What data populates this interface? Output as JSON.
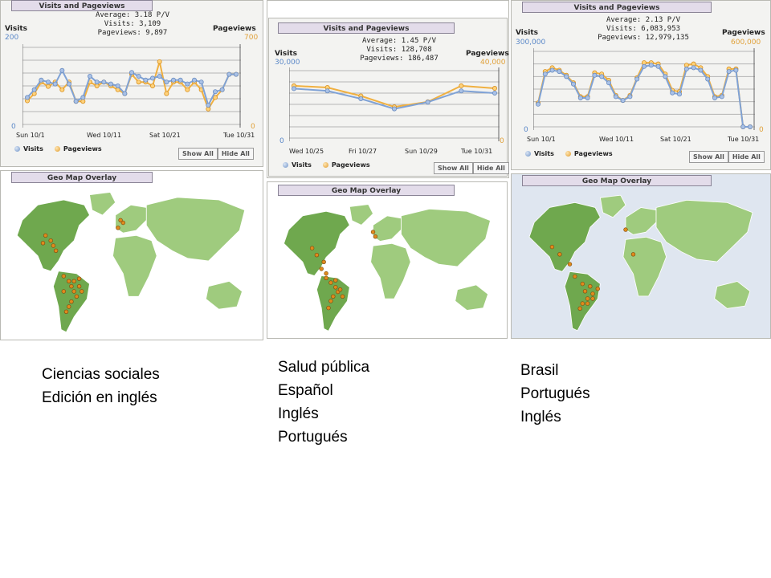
{
  "panels": [
    {
      "tab_label": "Visits and Pageviews",
      "stats": {
        "average": "Average: 3.18 P/V",
        "visits": "Visits: 3,109",
        "pageviews": "Pageviews: 9,897"
      },
      "y_left_title": "Visits",
      "y_right_title": "Pageviews",
      "y_left_max": "200",
      "y_right_max": "700",
      "y_left_min": "0",
      "y_right_min": "0",
      "x_labels": [
        "Sun 10/1",
        "Wed 10/11",
        "Sat 10/21",
        "Tue 10/31"
      ],
      "legend": [
        "Visits",
        "Pageviews"
      ],
      "buttons": [
        "Show All",
        "Hide All"
      ],
      "map_tab_label": "Geo Map Overlay"
    },
    {
      "tab_label": "Visits and Pageviews",
      "stats": {
        "average": "Average: 1.45 P/V",
        "visits": "Visits: 128,708",
        "pageviews": "Pageviews: 186,487"
      },
      "y_left_title": "Visits",
      "y_right_title": "Pageviews",
      "y_left_max": "30,000",
      "y_right_max": "40,000",
      "y_left_min": "0",
      "y_right_min": "0",
      "x_labels": [
        "Wed 10/25",
        "Fri 10/27",
        "Sun 10/29",
        "Tue 10/31"
      ],
      "legend": [
        "Visits",
        "Pageviews"
      ],
      "buttons": [
        "Show All",
        "Hide All"
      ],
      "map_tab_label": "Geo Map Overlay"
    },
    {
      "tab_label": "Visits and Pageviews",
      "stats": {
        "average": "Average: 2.13 P/V",
        "visits": "Visits: 6,083,953",
        "pageviews": "Pageviews: 12,979,135"
      },
      "y_left_title": "Visits",
      "y_right_title": "Pageviews",
      "y_left_max": "300,000",
      "y_right_max": "600,000",
      "y_left_min": "0",
      "y_right_min": "0",
      "x_labels": [
        "Sun 10/1",
        "Wed 10/11",
        "Sat 10/21",
        "Tue 10/31"
      ],
      "legend": [
        "Visits",
        "Pageviews"
      ],
      "buttons": [
        "Show All",
        "Hide All"
      ],
      "map_tab_label": "Geo Map Overlay"
    }
  ],
  "captions": [
    [
      "Ciencias sociales",
      "Edición en inglés"
    ],
    [
      "Salud pública",
      "Español",
      "Inglés",
      "Portugués"
    ],
    [
      "Brasil",
      "Portugués",
      "Inglés"
    ]
  ],
  "colors": {
    "visits": "#7fa2d6",
    "pageviews": "#f0b040",
    "land": "#9fcb7e",
    "land_dark": "#6fa84e",
    "marker": "#e08a1c"
  },
  "chart_data": [
    {
      "type": "line",
      "x": [
        "10/1",
        "10/2",
        "10/3",
        "10/4",
        "10/5",
        "10/6",
        "10/7",
        "10/8",
        "10/9",
        "10/10",
        "10/11",
        "10/12",
        "10/13",
        "10/14",
        "10/15",
        "10/16",
        "10/17",
        "10/18",
        "10/19",
        "10/20",
        "10/21",
        "10/22",
        "10/23",
        "10/24",
        "10/25",
        "10/26",
        "10/27",
        "10/28",
        "10/29",
        "10/30",
        "10/31"
      ],
      "x_tick_labels": [
        "Sun 10/1",
        "Wed 10/11",
        "Sat 10/21",
        "Tue 10/31"
      ],
      "series": [
        {
          "name": "Visits",
          "axis": "left",
          "ylim": [
            0,
            200
          ],
          "values": [
            70,
            90,
            115,
            110,
            105,
            140,
            105,
            60,
            70,
            125,
            110,
            110,
            105,
            100,
            80,
            135,
            125,
            115,
            120,
            125,
            110,
            115,
            115,
            105,
            115,
            110,
            50,
            85,
            90,
            130,
            130
          ]
        },
        {
          "name": "Pageviews",
          "axis": "right",
          "ylim": [
            0,
            700
          ],
          "values": [
            215,
            280,
            385,
            345,
            385,
            315,
            385,
            210,
            210,
            385,
            350,
            385,
            350,
            315,
            280,
            455,
            385,
            385,
            350,
            570,
            280,
            385,
            385,
            315,
            385,
            315,
            140,
            245,
            315,
            455,
            455
          ]
        }
      ],
      "ylabel_left": "Visits",
      "ylabel_right": "Pageviews",
      "grid": true,
      "legend": "bottom-left"
    },
    {
      "type": "line",
      "x": [
        "10/25",
        "10/26",
        "10/27",
        "10/28",
        "10/29",
        "10/30",
        "10/31"
      ],
      "x_tick_labels": [
        "Wed 10/25",
        "Fri 10/27",
        "Sun 10/29",
        "Tue 10/31"
      ],
      "series": [
        {
          "name": "Visits",
          "axis": "left",
          "ylim": [
            0,
            30000
          ],
          "values": [
            22000,
            21000,
            17500,
            13000,
            16000,
            21000,
            20000
          ]
        },
        {
          "name": "Pageviews",
          "axis": "right",
          "ylim": [
            0,
            40000
          ],
          "values": [
            31000,
            30000,
            25000,
            18500,
            21500,
            31000,
            29500
          ]
        }
      ],
      "ylabel_left": "Visits",
      "ylabel_right": "Pageviews",
      "grid": true,
      "legend": "bottom-left"
    },
    {
      "type": "line",
      "x": [
        "10/1",
        "10/2",
        "10/3",
        "10/4",
        "10/5",
        "10/6",
        "10/7",
        "10/8",
        "10/9",
        "10/10",
        "10/11",
        "10/12",
        "10/13",
        "10/14",
        "10/15",
        "10/16",
        "10/17",
        "10/18",
        "10/19",
        "10/20",
        "10/21",
        "10/22",
        "10/23",
        "10/24",
        "10/25",
        "10/26",
        "10/27",
        "10/28",
        "10/29",
        "10/30",
        "10/31"
      ],
      "x_tick_labels": [
        "Sun 10/1",
        "Wed 10/11",
        "Sat 10/21",
        "Tue 10/31"
      ],
      "series": [
        {
          "name": "Visits",
          "axis": "left",
          "ylim": [
            0,
            300000
          ],
          "values": [
            90000,
            210000,
            225000,
            220000,
            200000,
            170000,
            115000,
            115000,
            205000,
            200000,
            175000,
            120000,
            105000,
            120000,
            190000,
            240000,
            245000,
            240000,
            200000,
            135000,
            130000,
            230000,
            235000,
            225000,
            190000,
            115000,
            120000,
            220000,
            225000,
            0,
            0
          ]
        },
        {
          "name": "Pageviews",
          "axis": "right",
          "ylim": [
            0,
            600000
          ],
          "values": [
            190000,
            440000,
            470000,
            450000,
            410000,
            350000,
            240000,
            240000,
            430000,
            420000,
            370000,
            250000,
            210000,
            250000,
            390000,
            510000,
            510000,
            500000,
            420000,
            290000,
            280000,
            490000,
            500000,
            470000,
            400000,
            240000,
            250000,
            460000,
            460000,
            0,
            0
          ]
        }
      ],
      "ylabel_left": "Visits",
      "ylabel_right": "Pageviews",
      "grid": true,
      "legend": "bottom-left"
    }
  ]
}
